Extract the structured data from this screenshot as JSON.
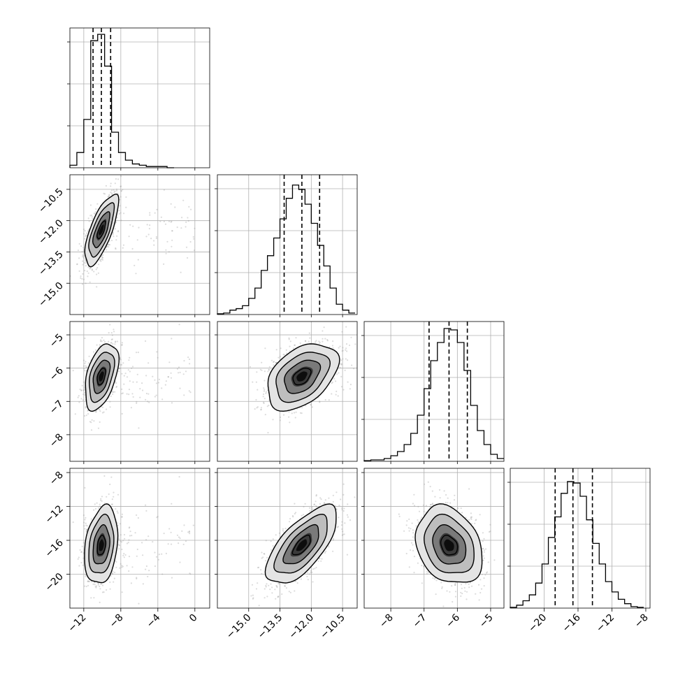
{
  "chart_data": {
    "type": "corner",
    "title": "",
    "parameters": [
      {
        "index": 0,
        "range": [
          -13.5,
          1.6
        ],
        "ticks": [
          -12,
          -8,
          -4,
          0
        ],
        "tick_labels": [
          "−12",
          "−8",
          "−4",
          "0"
        ],
        "quantiles": [
          -11.0,
          -10.1,
          -9.1
        ],
        "median": -10.1
      },
      {
        "index": 1,
        "range": [
          -16.5,
          -9.8
        ],
        "ticks": [
          -15.0,
          -13.5,
          -12.0,
          -10.5
        ],
        "tick_labels": [
          "−15.0",
          "−13.5",
          "−12.0",
          "−10.5"
        ],
        "quantiles": [
          -13.3,
          -12.45,
          -11.6
        ],
        "median": -12.45
      },
      {
        "index": 2,
        "range": [
          -8.8,
          -4.6
        ],
        "ticks": [
          -8,
          -7,
          -6,
          -5
        ],
        "tick_labels": [
          "−8",
          "−7",
          "−6",
          "−5"
        ],
        "quantiles": [
          -6.85,
          -6.25,
          -5.7
        ],
        "median": -6.25
      },
      {
        "index": 3,
        "range": [
          -24.0,
          -7.5
        ],
        "ticks": [
          -20,
          -16,
          -12,
          -8
        ],
        "tick_labels": [
          "−20",
          "−16",
          "−12",
          "−8"
        ],
        "quantiles": [
          -18.7,
          -16.6,
          -14.3
        ],
        "median": -16.6
      }
    ],
    "histograms": [
      {
        "param": 0,
        "edges": [
          -13.5,
          -12.75,
          -12.0,
          -11.25,
          -10.5,
          -9.75,
          -9.0,
          -8.25,
          -7.5,
          -6.75,
          -6.0,
          -5.25,
          -4.5,
          -3.75,
          -3.0,
          -2.25
        ],
        "counts": [
          2,
          12,
          38,
          100,
          105,
          80,
          28,
          12,
          6,
          3,
          2,
          1,
          1,
          1,
          0
        ],
        "ymax": 110
      },
      {
        "param": 1,
        "edges": [
          -16.5,
          -16.2,
          -15.9,
          -15.6,
          -15.3,
          -15.0,
          -14.7,
          -14.4,
          -14.1,
          -13.8,
          -13.5,
          -13.2,
          -12.9,
          -12.6,
          -12.3,
          -12.0,
          -11.7,
          -11.4,
          -11.1,
          -10.8,
          -10.5,
          -10.2,
          -9.9
        ],
        "counts": [
          0.5,
          1,
          3,
          4,
          6,
          11,
          18,
          30,
          40,
          52,
          65,
          79,
          88,
          85,
          75,
          62,
          47,
          33,
          18,
          7,
          3,
          1
        ],
        "ymax": 95
      },
      {
        "param": 2,
        "edges": [
          -8.8,
          -8.6,
          -8.4,
          -8.2,
          -8.0,
          -7.8,
          -7.6,
          -7.4,
          -7.2,
          -7.0,
          -6.8,
          -6.6,
          -6.4,
          -6.2,
          -6.0,
          -5.8,
          -5.6,
          -5.4,
          -5.2,
          -5.0,
          -4.8,
          -4.6
        ],
        "counts": [
          0.5,
          1,
          1,
          2,
          4,
          7,
          12,
          20,
          33,
          52,
          72,
          85,
          95,
          94,
          85,
          65,
          40,
          22,
          12,
          5,
          2
        ],
        "ymax": 100
      },
      {
        "param": 3,
        "edges": [
          -24.0,
          -23.25,
          -22.5,
          -21.75,
          -21.0,
          -20.25,
          -19.5,
          -18.75,
          -18.0,
          -17.25,
          -16.5,
          -15.75,
          -15.0,
          -14.25,
          -13.5,
          -12.75,
          -12.0,
          -11.25,
          -10.5,
          -9.75,
          -9.0,
          -8.25
        ],
        "counts": [
          0.5,
          2,
          5,
          9,
          17,
          30,
          48,
          62,
          78,
          86,
          85,
          76,
          60,
          44,
          30,
          18,
          11,
          6,
          3,
          1,
          0.5
        ],
        "ymax": 95
      }
    ],
    "pairs": [
      {
        "x": 0,
        "y": 1,
        "center": [
          -10.1,
          -12.45
        ],
        "sx": 0.9,
        "sy": 0.85,
        "rho": 0.72
      },
      {
        "x": 0,
        "y": 2,
        "center": [
          -10.1,
          -6.25
        ],
        "sx": 0.9,
        "sy": 0.5,
        "rho": 0.45
      },
      {
        "x": 1,
        "y": 2,
        "center": [
          -12.45,
          -6.25
        ],
        "sx": 0.85,
        "sy": 0.5,
        "rho": 0.42
      },
      {
        "x": 0,
        "y": 3,
        "center": [
          -10.1,
          -16.6
        ],
        "sx": 0.9,
        "sy": 2.3,
        "rho": 0.25
      },
      {
        "x": 1,
        "y": 3,
        "center": [
          -12.45,
          -16.6
        ],
        "sx": 0.85,
        "sy": 2.3,
        "rho": 0.68
      },
      {
        "x": 2,
        "y": 3,
        "center": [
          -6.25,
          -16.6
        ],
        "sx": 0.5,
        "sy": 2.3,
        "rho": -0.25
      }
    ],
    "contour_levels_sigma": [
      0.5,
      1.0,
      1.5,
      2.0
    ],
    "grid": true
  }
}
